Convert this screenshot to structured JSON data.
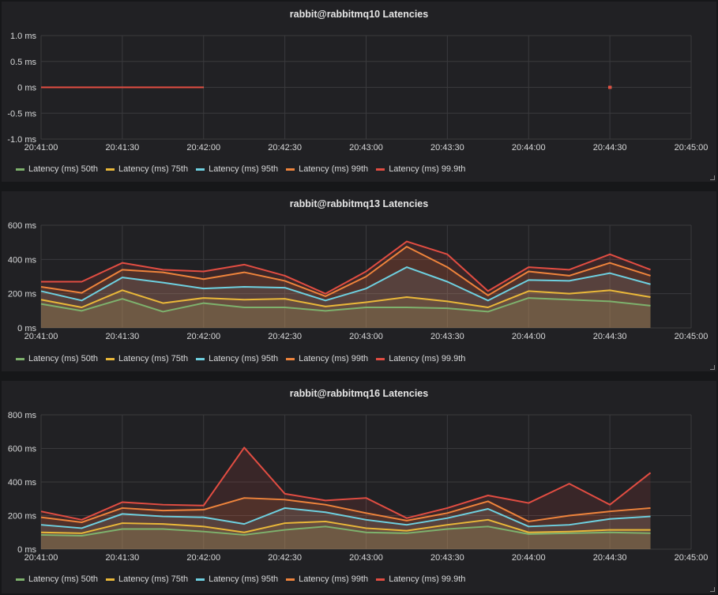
{
  "series_colors": {
    "Latency (ms) 50th": "#7eb26d",
    "Latency (ms) 75th": "#eab839",
    "Latency (ms) 95th": "#6ed0e0",
    "Latency (ms) 99th": "#ef843c",
    "Latency (ms) 99.9th": "#e24d42"
  },
  "chart_data": [
    {
      "type": "line",
      "title": "rabbit@rabbitmq10 Latencies",
      "x_ticks": [
        "20:41:00",
        "20:41:30",
        "20:42:00",
        "20:42:30",
        "20:43:00",
        "20:43:30",
        "20:44:00",
        "20:44:30",
        "20:45:00"
      ],
      "y_ticks": [
        "1.0 ms",
        "0.5 ms",
        "0 ms",
        "-0.5 ms",
        "-1.0 ms"
      ],
      "ylim": [
        -1,
        1
      ],
      "grid": true,
      "legend": "bottom",
      "x": [
        "20:41:00",
        "20:41:15",
        "20:41:30",
        "20:41:45",
        "20:42:00",
        "20:44:30"
      ],
      "series": [
        {
          "name": "Latency (ms) 50th",
          "values": [
            0,
            0,
            0,
            0,
            0,
            0
          ]
        },
        {
          "name": "Latency (ms) 75th",
          "values": [
            0,
            0,
            0,
            0,
            0,
            0
          ]
        },
        {
          "name": "Latency (ms) 95th",
          "values": [
            0,
            0,
            0,
            0,
            0,
            0
          ]
        },
        {
          "name": "Latency (ms) 99th",
          "values": [
            0,
            0,
            0,
            0,
            0,
            0
          ]
        },
        {
          "name": "Latency (ms) 99.9th",
          "values": [
            0,
            0,
            0,
            0,
            0,
            0
          ]
        }
      ]
    },
    {
      "type": "area",
      "title": "rabbit@rabbitmq13 Latencies",
      "x_ticks": [
        "20:41:00",
        "20:41:30",
        "20:42:00",
        "20:42:30",
        "20:43:00",
        "20:43:30",
        "20:44:00",
        "20:44:30",
        "20:45:00"
      ],
      "y_ticks": [
        "600 ms",
        "400 ms",
        "200 ms",
        "0 ms"
      ],
      "ylim": [
        0,
        600
      ],
      "grid": true,
      "legend": "bottom",
      "x": [
        "20:41:00",
        "20:41:15",
        "20:41:30",
        "20:41:45",
        "20:42:00",
        "20:42:15",
        "20:42:30",
        "20:42:45",
        "20:43:00",
        "20:43:15",
        "20:43:30",
        "20:43:45",
        "20:44:00",
        "20:44:15",
        "20:44:30",
        "20:44:45"
      ],
      "series": [
        {
          "name": "Latency (ms) 50th",
          "values": [
            140,
            100,
            170,
            95,
            145,
            120,
            120,
            100,
            120,
            120,
            115,
            95,
            175,
            165,
            155,
            130
          ]
        },
        {
          "name": "Latency (ms) 75th",
          "values": [
            165,
            120,
            220,
            145,
            175,
            165,
            170,
            125,
            150,
            180,
            155,
            120,
            215,
            200,
            220,
            180
          ]
        },
        {
          "name": "Latency (ms) 95th",
          "values": [
            215,
            160,
            295,
            265,
            230,
            240,
            235,
            160,
            230,
            355,
            270,
            160,
            280,
            275,
            320,
            255
          ]
        },
        {
          "name": "Latency (ms) 99th",
          "values": [
            240,
            205,
            340,
            325,
            285,
            325,
            275,
            185,
            300,
            475,
            355,
            190,
            330,
            305,
            380,
            305
          ]
        },
        {
          "name": "Latency (ms) 99.9th",
          "values": [
            270,
            270,
            380,
            340,
            330,
            370,
            305,
            200,
            330,
            505,
            430,
            215,
            355,
            340,
            430,
            340
          ]
        }
      ]
    },
    {
      "type": "area",
      "title": "rabbit@rabbitmq16 Latencies",
      "x_ticks": [
        "20:41:00",
        "20:41:30",
        "20:42:00",
        "20:42:30",
        "20:43:00",
        "20:43:30",
        "20:44:00",
        "20:44:30",
        "20:45:00"
      ],
      "y_ticks": [
        "800 ms",
        "600 ms",
        "400 ms",
        "200 ms",
        "0 ms"
      ],
      "ylim": [
        0,
        800
      ],
      "grid": true,
      "legend": "bottom",
      "x": [
        "20:41:00",
        "20:41:15",
        "20:41:30",
        "20:41:45",
        "20:42:00",
        "20:42:15",
        "20:42:30",
        "20:42:45",
        "20:43:00",
        "20:43:15",
        "20:43:30",
        "20:43:45",
        "20:44:00",
        "20:44:15",
        "20:44:30",
        "20:44:45"
      ],
      "series": [
        {
          "name": "Latency (ms) 50th",
          "values": [
            85,
            80,
            120,
            120,
            105,
            85,
            115,
            135,
            100,
            95,
            120,
            135,
            90,
            95,
            100,
            95
          ]
        },
        {
          "name": "Latency (ms) 75th",
          "values": [
            100,
            95,
            155,
            150,
            135,
            100,
            155,
            165,
            125,
            110,
            145,
            175,
            100,
            105,
            115,
            115
          ]
        },
        {
          "name": "Latency (ms) 95th",
          "values": [
            145,
            125,
            210,
            195,
            190,
            150,
            245,
            220,
            175,
            145,
            185,
            240,
            135,
            145,
            180,
            195
          ]
        },
        {
          "name": "Latency (ms) 99th",
          "values": [
            190,
            160,
            245,
            230,
            235,
            305,
            295,
            265,
            215,
            170,
            215,
            285,
            165,
            200,
            225,
            245
          ]
        },
        {
          "name": "Latency (ms) 99.9th",
          "values": [
            225,
            175,
            280,
            265,
            260,
            605,
            330,
            290,
            305,
            185,
            245,
            320,
            275,
            390,
            265,
            455
          ]
        }
      ]
    }
  ]
}
